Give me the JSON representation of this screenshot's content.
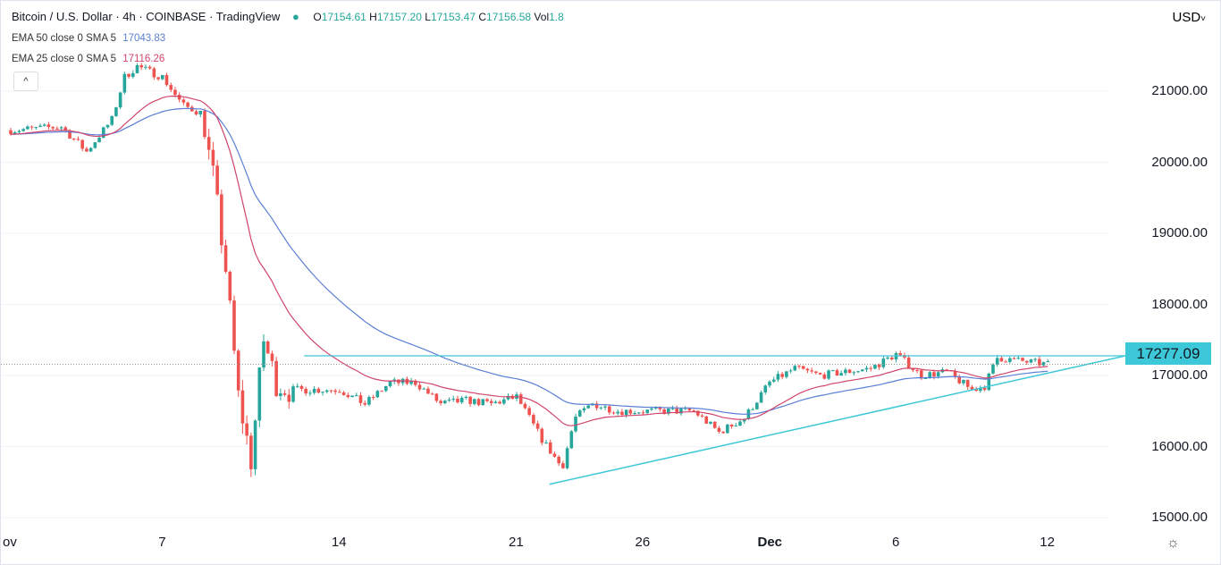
{
  "header": {
    "title": "Bitcoin / U.S. Dollar · 4h · COINBASE · TradingView",
    "open": "17154.61",
    "high": "17157.20",
    "low": "17153.47",
    "close": "17156.58",
    "vol": "1.8",
    "o_label": "O",
    "h_label": "H",
    "l_label": "L",
    "c_label": "C",
    "vol_label": "Vol"
  },
  "indicators": [
    {
      "label": "EMA 50 close 0 SMA 5",
      "value": "17043.83",
      "color": "#5b7fd6"
    },
    {
      "label": "EMA 25 close 0 SMA 5",
      "value": "17116.26",
      "color": "#d0456a"
    }
  ],
  "collapse_label": "^",
  "currency": "USD",
  "price_tag": "17277.09",
  "colors": {
    "up": "#26a69a",
    "down": "#ef5350",
    "trend": "#3cc8d8"
  },
  "chart_data": {
    "type": "candlestick",
    "title": "Bitcoin / U.S. Dollar · 4h · COINBASE",
    "y_ticks": [
      "21000.00",
      "20000.00",
      "19000.00",
      "18000.00",
      "17000.00",
      "16000.00",
      "15000.00"
    ],
    "y_values": [
      21000,
      20000,
      19000,
      18000,
      17000,
      16000,
      15000
    ],
    "ylim": [
      14700,
      21900
    ],
    "x_ticks": [
      {
        "label": "ov",
        "day": 0
      },
      {
        "label": "7",
        "day": 6
      },
      {
        "label": "14",
        "day": 13
      },
      {
        "label": "21",
        "day": 20
      },
      {
        "label": "26",
        "day": 25
      },
      {
        "label": "Dec",
        "day": 30
      },
      {
        "label": "6",
        "day": 35
      },
      {
        "label": "12",
        "day": 41
      }
    ],
    "price_path_days_since_nov1": [
      [
        0,
        20450
      ],
      [
        2,
        20500
      ],
      [
        3,
        20150
      ],
      [
        4,
        20600
      ],
      [
        4.5,
        21200
      ],
      [
        5,
        21350
      ],
      [
        6,
        21200
      ],
      [
        6.8,
        20800
      ],
      [
        7.5,
        20700
      ],
      [
        8,
        19800
      ],
      [
        8.5,
        18500
      ],
      [
        9,
        16700
      ],
      [
        9.5,
        15800
      ],
      [
        10,
        17500
      ],
      [
        10.5,
        16900
      ],
      [
        11,
        16800
      ],
      [
        13,
        16800
      ],
      [
        14,
        16600
      ],
      [
        15,
        16900
      ],
      [
        16,
        16900
      ],
      [
        17,
        16600
      ],
      [
        18,
        16650
      ],
      [
        19,
        16600
      ],
      [
        20,
        16700
      ],
      [
        21,
        16100
      ],
      [
        21.8,
        15700
      ],
      [
        22.3,
        16400
      ],
      [
        23,
        16600
      ],
      [
        24,
        16500
      ],
      [
        26,
        16500
      ],
      [
        27,
        16500
      ],
      [
        28,
        16200
      ],
      [
        29,
        16400
      ],
      [
        30,
        16900
      ],
      [
        31,
        17100
      ],
      [
        32,
        17000
      ],
      [
        34,
        17100
      ],
      [
        35,
        17300
      ],
      [
        36,
        17000
      ],
      [
        37,
        17050
      ],
      [
        38,
        16800
      ],
      [
        38.5,
        16850
      ],
      [
        39,
        17250
      ],
      [
        40,
        17200
      ],
      [
        41,
        17157
      ]
    ],
    "horizontal_line": {
      "price": 17277.09,
      "from_day": 11.6
    },
    "trendline": [
      [
        21.3,
        15470
      ],
      [
        44.3,
        17277
      ]
    ],
    "current_price": 17156.58
  }
}
